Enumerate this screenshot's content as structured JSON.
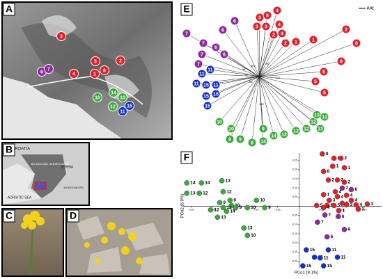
{
  "panels": {
    "A": {
      "letter": "A",
      "markers": [
        {
          "label": "3",
          "color": "#e0202a"
        },
        {
          "label": "2",
          "color": "#e0202a"
        },
        {
          "label": "5",
          "color": "#e0202a"
        },
        {
          "label": "8",
          "color": "#e0202a"
        },
        {
          "label": "1",
          "color": "#e0202a"
        },
        {
          "label": "4",
          "color": "#e0202a"
        },
        {
          "label": "6",
          "color": "#8e2a9e"
        },
        {
          "label": "7",
          "color": "#8e2a9e"
        },
        {
          "label": "10",
          "color": "#3aaa3a"
        },
        {
          "label": "14",
          "color": "#3aaa3a"
        },
        {
          "label": "13",
          "color": "#3aaa3a"
        },
        {
          "label": "12",
          "color": "#3aaa3a"
        },
        {
          "label": "15",
          "color": "#1530c8"
        },
        {
          "label": "11",
          "color": "#1530c8"
        }
      ]
    },
    "B": {
      "letter": "B",
      "places": [
        "CROATIA",
        "BOSNIA AND HERZEGOVINA",
        "SERBIA",
        "MONTENEGRO",
        "ADRIATIC SEA"
      ]
    },
    "C": {
      "letter": "C"
    },
    "D": {
      "letter": "D"
    },
    "E": {
      "letter": "E",
      "scale": "0.01",
      "support": [
        "100",
        "99",
        "57",
        "54",
        "100",
        "53",
        "100"
      ],
      "tips": [
        {
          "label": "3",
          "color": "#e0202a"
        },
        {
          "label": "8",
          "color": "#e0202a"
        },
        {
          "label": "4",
          "color": "#e0202a"
        },
        {
          "label": "3",
          "color": "#e0202a"
        },
        {
          "label": "3",
          "color": "#e0202a"
        },
        {
          "label": "4",
          "color": "#e0202a"
        },
        {
          "label": "4",
          "color": "#e0202a"
        },
        {
          "label": "2",
          "color": "#e0202a"
        },
        {
          "label": "2",
          "color": "#e0202a"
        },
        {
          "label": "1",
          "color": "#e0202a"
        },
        {
          "label": "1",
          "color": "#e0202a"
        },
        {
          "label": "2",
          "color": "#e0202a"
        },
        {
          "label": "8",
          "color": "#e0202a"
        },
        {
          "label": "8",
          "color": "#e0202a"
        },
        {
          "label": "5",
          "color": "#e0202a"
        },
        {
          "label": "5",
          "color": "#e0202a"
        },
        {
          "label": "5",
          "color": "#e0202a"
        },
        {
          "label": "7",
          "color": "#8e2a9e"
        },
        {
          "label": "6",
          "color": "#8e2a9e"
        },
        {
          "label": "6",
          "color": "#8e2a9e"
        },
        {
          "label": "7",
          "color": "#8e2a9e"
        },
        {
          "label": "6",
          "color": "#8e2a9e"
        },
        {
          "label": "6",
          "color": "#8e2a9e"
        },
        {
          "label": "7",
          "color": "#8e2a9e"
        },
        {
          "label": "7",
          "color": "#8e2a9e"
        },
        {
          "label": "11",
          "color": "#1530c8"
        },
        {
          "label": "11",
          "color": "#1530c8"
        },
        {
          "label": "11",
          "color": "#1530c8"
        },
        {
          "label": "15",
          "color": "#1530c8"
        },
        {
          "label": "11",
          "color": "#1530c8"
        },
        {
          "label": "15",
          "color": "#1530c8"
        },
        {
          "label": "15",
          "color": "#1530c8"
        },
        {
          "label": "15",
          "color": "#1530c8"
        },
        {
          "label": "10",
          "color": "#3aaa3a"
        },
        {
          "label": "10",
          "color": "#3aaa3a"
        },
        {
          "label": "9",
          "color": "#3aaa3a"
        },
        {
          "label": "9",
          "color": "#3aaa3a"
        },
        {
          "label": "9",
          "color": "#3aaa3a"
        },
        {
          "label": "9",
          "color": "#3aaa3a"
        },
        {
          "label": "14",
          "color": "#3aaa3a"
        },
        {
          "label": "14",
          "color": "#3aaa3a"
        },
        {
          "label": "12",
          "color": "#3aaa3a"
        },
        {
          "label": "12",
          "color": "#3aaa3a"
        },
        {
          "label": "12",
          "color": "#3aaa3a"
        },
        {
          "label": "12",
          "color": "#3aaa3a"
        },
        {
          "label": "13",
          "color": "#3aaa3a"
        },
        {
          "label": "13",
          "color": "#3aaa3a"
        },
        {
          "label": "13",
          "color": "#3aaa3a"
        }
      ]
    },
    "F": {
      "letter": "F"
    }
  },
  "chart_data": {
    "type": "scatter",
    "x_label": "PCo1 (9.1%)",
    "y_label": "PCo2 (6.9%)",
    "xlim": [
      -0.27,
      0.19
    ],
    "ylim": [
      -0.34,
      0.29
    ],
    "xticks": [
      -0.25,
      {
        "value": -0.2,
        "label": "-0.20"
      },
      -0.15,
      {
        "value": -0.1,
        "label": "-0.10"
      },
      -0.05,
      0.05,
      {
        "value": 0.1,
        "label": "0.10"
      },
      0.15
    ],
    "yticks": [
      0.25,
      {
        "value": 0.2,
        "label": "0.20"
      },
      0.15,
      {
        "value": 0.1,
        "label": "0.10"
      },
      0.05,
      -0.05,
      {
        "value": -0.1,
        "label": "-0.10"
      },
      -0.15,
      {
        "value": -0.2,
        "label": "-0.20"
      },
      -0.25,
      {
        "value": -0.3,
        "label": "-0.30"
      }
    ],
    "series": [
      {
        "color": "#3aaa3a",
        "x": [
          -0.26,
          -0.226,
          -0.179,
          -0.26,
          -0.231,
          -0.176,
          -0.184,
          -0.16,
          -0.157,
          -0.176,
          -0.205,
          -0.168,
          -0.147,
          -0.12,
          -0.099,
          -0.08,
          -0.189,
          -0.128,
          -0.12
        ],
        "values": [
          0.127,
          0.127,
          0.139,
          0.071,
          0.071,
          0.079,
          0.02,
          0.032,
          0.004,
          -0.008,
          -0.02,
          -0.028,
          -0.008,
          -0.008,
          0.032,
          -0.008,
          -0.06,
          -0.119,
          -0.159
        ],
        "point_labels": [
          "14",
          "14",
          "13",
          "13",
          "12",
          "12",
          "9",
          "9",
          "10",
          "12",
          "12",
          "14",
          "9",
          "10",
          "10",
          "9",
          "13",
          "13",
          "10"
        ]
      },
      {
        "color": "#e0202a",
        "x": [
          0.053,
          0.08,
          0.056,
          0.077,
          0.096,
          0.104,
          0.067,
          0.088,
          0.104,
          0.083,
          0.056,
          0.069,
          0.088,
          0.109,
          0.12,
          0.064,
          0.08,
          0.099,
          0.109,
          0.131,
          0.157,
          0.04,
          0.056,
          0.091,
          0.136
        ],
        "values": [
          0.286,
          0.262,
          0.19,
          0.218,
          0.262,
          0.21,
          0.143,
          0.143,
          0.131,
          0.079,
          0.063,
          0.032,
          0.052,
          0.06,
          0.032,
          0.004,
          0.004,
          0.016,
          0.008,
          0.008,
          0.012,
          0.004,
          -0.008,
          -0.024,
          -0.016
        ],
        "point_labels": [
          "8",
          "8",
          "8",
          "1",
          "2",
          "1",
          "2",
          "2",
          "2",
          "4",
          "1",
          "3",
          "4",
          "4",
          "4",
          "5",
          "5",
          "3",
          "3",
          "4",
          "3",
          "5",
          "4",
          "1",
          "3"
        ]
      },
      {
        "color": "#8e2a9e",
        "x": [
          0.099,
          0.12,
          0.059,
          0.09,
          0.042,
          0.104,
          0.064
        ],
        "values": [
          0.099,
          0.091,
          -0.048,
          -0.056,
          -0.087,
          -0.127,
          -0.167
        ],
        "point_labels": [
          "7",
          "6",
          "7",
          "6",
          "7",
          "6",
          "6"
        ]
      },
      {
        "color": "#1530c8",
        "x": [
          0.016,
          0.067,
          0.035,
          0.048,
          0.088,
          0.008,
          0.056
        ],
        "values": [
          -0.238,
          -0.238,
          -0.278,
          -0.282,
          -0.278,
          -0.325,
          -0.325
        ],
        "point_labels": [
          "15",
          "11",
          "15",
          "11",
          "11",
          "15",
          "15"
        ]
      }
    ]
  }
}
